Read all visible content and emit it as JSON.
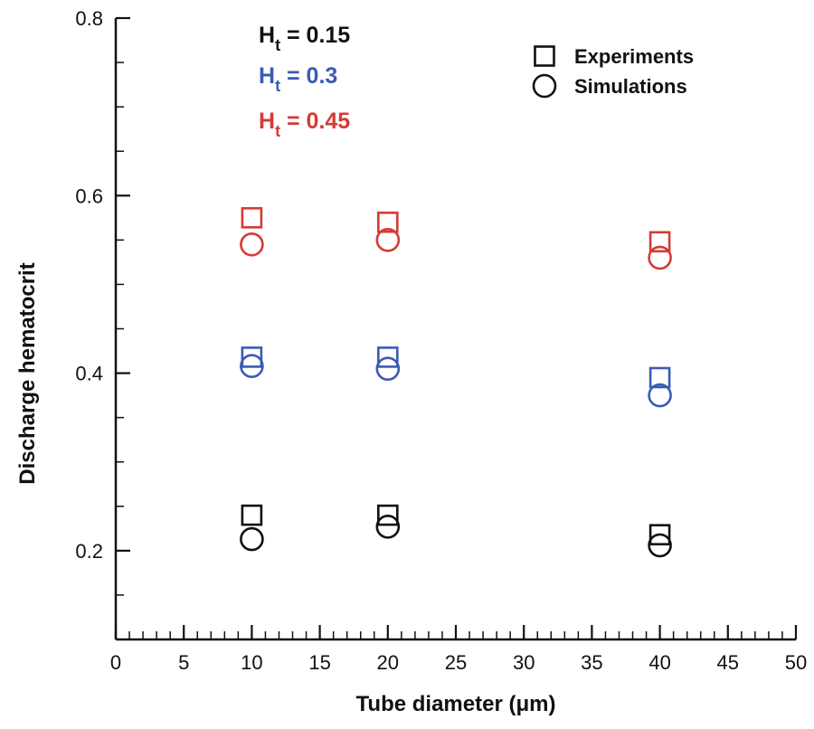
{
  "chart_data": {
    "type": "scatter",
    "xlabel": "Tube diameter (μm)",
    "ylabel": "Discharge hematocrit",
    "xlim": [
      0,
      50
    ],
    "ylim": [
      0.1,
      0.8
    ],
    "x_ticks": [
      "0",
      "5",
      "10",
      "15",
      "20",
      "25",
      "30",
      "35",
      "40",
      "45",
      "50"
    ],
    "y_ticks": [
      "0.2",
      "0.4",
      "0.6",
      "0.8"
    ],
    "grid": false,
    "legend_position": "top-right",
    "legend": [
      {
        "label": "Experiments",
        "marker": "square"
      },
      {
        "label": "Simulations",
        "marker": "circle"
      }
    ],
    "groups": [
      {
        "label_base": "H",
        "label_sub": "t",
        "label_rest": " = 0.15",
        "color": "#111111",
        "experiments": [
          {
            "x": 10,
            "y": 0.24
          },
          {
            "x": 20,
            "y": 0.24
          },
          {
            "x": 40,
            "y": 0.218
          }
        ],
        "simulations": [
          {
            "x": 10,
            "y": 0.213
          },
          {
            "x": 20,
            "y": 0.227
          },
          {
            "x": 40,
            "y": 0.206
          }
        ]
      },
      {
        "label_base": "H",
        "label_sub": "t",
        "label_rest": " = 0.3",
        "color": "#3a5bb5",
        "experiments": [
          {
            "x": 10,
            "y": 0.418
          },
          {
            "x": 20,
            "y": 0.418
          },
          {
            "x": 40,
            "y": 0.395
          }
        ],
        "simulations": [
          {
            "x": 10,
            "y": 0.408
          },
          {
            "x": 20,
            "y": 0.405
          },
          {
            "x": 40,
            "y": 0.375
          }
        ]
      },
      {
        "label_base": "H",
        "label_sub": "t",
        "label_rest": " = 0.45",
        "color": "#d63a35",
        "experiments": [
          {
            "x": 10,
            "y": 0.575
          },
          {
            "x": 20,
            "y": 0.57
          },
          {
            "x": 40,
            "y": 0.548
          }
        ],
        "simulations": [
          {
            "x": 10,
            "y": 0.545
          },
          {
            "x": 20,
            "y": 0.55
          },
          {
            "x": 40,
            "y": 0.53
          }
        ]
      }
    ]
  }
}
